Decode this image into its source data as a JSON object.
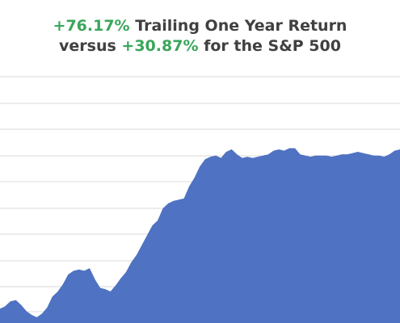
{
  "title": {
    "line1_value": "+76.17%",
    "line1_text": " Trailing One Year Return",
    "line2_prefix": "versus ",
    "line2_value": "+30.87%",
    "line2_text": " for the S&P 500"
  },
  "colors": {
    "area_fill": "#4f72c2",
    "positive_green": "#3aa65b",
    "title_gray": "#404040",
    "gridline": "#d9d9d9"
  },
  "chart_data": {
    "type": "area",
    "title": "+76.17% Trailing One Year Return versus +30.87% for the S&P 500",
    "xlabel": "",
    "ylabel": "",
    "grid": true,
    "y_axis_labels_visible": false,
    "x_axis_labels_visible": false,
    "note": "",
    "series": [
      {
        "values": [
          0.0,
          1.0,
          3.0,
          3.5,
          1.5,
          -1.0,
          -2.5,
          -3.5,
          -2.0,
          0.5,
          5.0,
          7.0,
          10.0,
          14.0,
          15.5,
          16.0,
          15.5,
          16.5,
          12.0,
          8.5,
          8.0,
          7.0,
          9.5,
          12.5,
          15.0,
          19.0,
          22.0,
          26.0,
          30.0,
          34.0,
          36.0,
          41.0,
          43.0,
          44.0,
          44.5,
          45.0,
          50.0,
          53.5,
          58.0,
          61.0,
          62.0,
          62.5,
          61.5,
          64.0,
          65.0,
          63.0,
          61.5,
          62.0,
          61.5,
          62.0,
          62.5,
          63.0,
          64.5,
          65.0,
          64.5,
          65.5,
          65.5,
          63.0,
          62.5,
          62.0,
          62.5,
          62.5,
          62.5,
          62.0,
          62.5,
          63.0,
          63.0,
          63.5,
          64.0,
          63.5,
          63.0,
          62.5,
          62.5,
          62.0,
          63.0,
          64.5,
          65.0
        ]
      }
    ]
  }
}
